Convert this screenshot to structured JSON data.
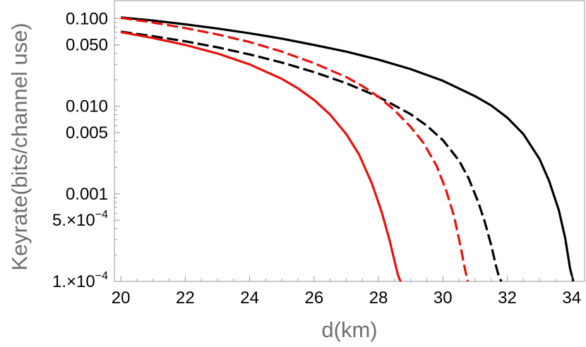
{
  "chart_data": {
    "type": "line",
    "title": "",
    "xlabel": "d(km)",
    "ylabel": "Keyrate(bits/channel use)",
    "xlim": [
      19.8,
      34.4
    ],
    "ylim": [
      0.0001,
      0.16
    ],
    "yscale": "log",
    "grid": false,
    "x_ticks": [
      20,
      22,
      24,
      26,
      28,
      30,
      32,
      34
    ],
    "x_tick_labels": [
      "20",
      "22",
      "24",
      "26",
      "28",
      "30",
      "32",
      "34"
    ],
    "y_ticks": [
      0.1,
      0.05,
      0.01,
      0.005,
      0.001,
      0.0005,
      0.0001
    ],
    "y_tick_labels": [
      {
        "text": "0.100"
      },
      {
        "text": "0.050"
      },
      {
        "text": "0.010"
      },
      {
        "text": "0.005"
      },
      {
        "text": "0.001"
      },
      {
        "text": "5.×10",
        "exp": "−4"
      },
      {
        "text": "1.×10",
        "exp": "−4"
      }
    ],
    "series": [
      {
        "color": "#000000",
        "dash": "solid",
        "x": [
          20,
          21,
          22,
          23,
          24,
          25,
          26,
          27,
          28,
          29,
          30,
          31,
          31.5,
          32,
          32.5,
          33,
          33.3,
          33.6,
          33.8,
          33.95,
          34.05
        ],
        "y": [
          0.103,
          0.095,
          0.086,
          0.077,
          0.068,
          0.059,
          0.05,
          0.042,
          0.034,
          0.0265,
          0.0195,
          0.013,
          0.0102,
          0.0074,
          0.0048,
          0.0025,
          0.0014,
          0.00065,
          0.00031,
          0.00014,
          0.0001
        ]
      },
      {
        "color": "#000000",
        "dash": "dashed",
        "x": [
          20,
          21,
          22,
          23,
          24,
          25,
          26,
          27,
          28,
          29,
          29.5,
          30,
          30.5,
          30.8,
          31.1,
          31.3,
          31.5,
          31.65,
          31.75,
          31.82
        ],
        "y": [
          0.071,
          0.063,
          0.055,
          0.047,
          0.039,
          0.0315,
          0.0245,
          0.0183,
          0.0128,
          0.0081,
          0.006,
          0.0041,
          0.0024,
          0.0015,
          0.0008,
          0.00048,
          0.00026,
          0.00015,
          0.00011,
          0.0001
        ]
      },
      {
        "color": "#e8100b",
        "dash": "dashed",
        "x": [
          20,
          21,
          22,
          23,
          24,
          25,
          26,
          27,
          27.5,
          28,
          28.5,
          29,
          29.4,
          29.8,
          30.1,
          30.35,
          30.55,
          30.7,
          30.78
        ],
        "y": [
          0.102,
          0.09,
          0.078,
          0.066,
          0.054,
          0.042,
          0.031,
          0.0215,
          0.017,
          0.0128,
          0.009,
          0.0058,
          0.0038,
          0.0021,
          0.0011,
          0.00055,
          0.00025,
          0.00013,
          0.0001
        ]
      },
      {
        "color": "#e8100b",
        "dash": "solid",
        "x": [
          20,
          21,
          22,
          23,
          24,
          25,
          25.5,
          26,
          26.5,
          27,
          27.4,
          27.8,
          28.1,
          28.35,
          28.5,
          28.6,
          28.66,
          28.7
        ],
        "y": [
          0.07,
          0.06,
          0.05,
          0.04,
          0.03,
          0.0205,
          0.016,
          0.0118,
          0.008,
          0.0048,
          0.0028,
          0.0013,
          0.00062,
          0.00029,
          0.00017,
          0.00012,
          0.000105,
          0.0001
        ]
      }
    ]
  }
}
